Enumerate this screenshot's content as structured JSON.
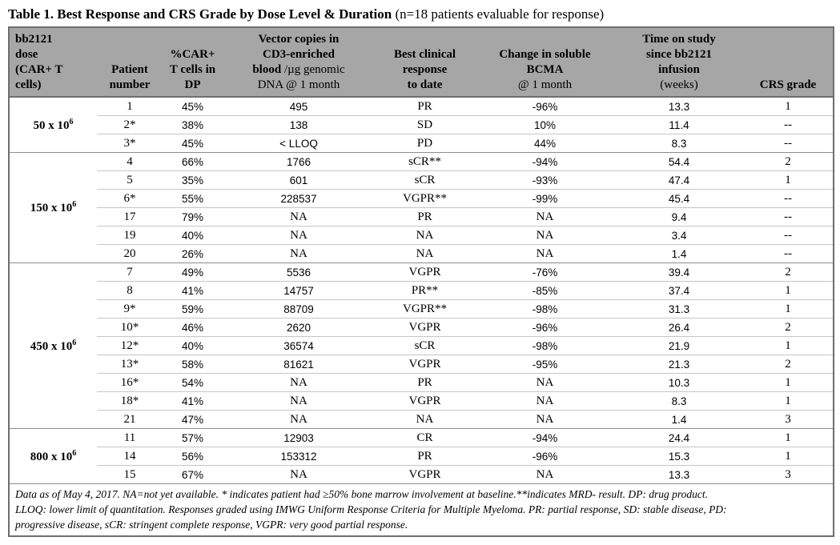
{
  "title": {
    "bold": "Table 1. Best Response and CRS Grade by Dose Level & Duration",
    "normal": " (n=18 patients evaluable for response)"
  },
  "colors": {
    "header_bg": "#a6a6a6",
    "outer_border": "#6e6e6e",
    "group_line": "#8c8c8c",
    "row_line": "#c6c6c6",
    "text": "#000000"
  },
  "table": {
    "columns": [
      {
        "id": "dose",
        "lines": [
          [
            {
              "t": "bb2121",
              "b": true
            }
          ],
          [
            {
              "t": "dose",
              "b": true
            }
          ],
          [
            {
              "t": "(CAR+ T",
              "b": true
            }
          ],
          [
            {
              "t": "cells)",
              "b": true
            }
          ]
        ]
      },
      {
        "id": "patient",
        "lines": [
          [
            {
              "t": "Patient",
              "b": true
            }
          ],
          [
            {
              "t": "number",
              "b": true
            }
          ]
        ]
      },
      {
        "id": "car_pct",
        "lines": [
          [
            {
              "t": "%CAR+",
              "b": true
            }
          ],
          [
            {
              "t": "T cells in",
              "b": true
            }
          ],
          [
            {
              "t": "DP",
              "b": true
            }
          ]
        ]
      },
      {
        "id": "vector",
        "lines": [
          [
            {
              "t": "Vector copies in",
              "b": true
            }
          ],
          [
            {
              "t": "CD3-enriched",
              "b": true
            }
          ],
          [
            {
              "t": "blood ",
              "b": true
            },
            {
              "t": "/µg genomic",
              "b": false
            }
          ],
          [
            {
              "t": "DNA @ 1 month",
              "b": false
            }
          ]
        ]
      },
      {
        "id": "response",
        "lines": [
          [
            {
              "t": "Best clinical",
              "b": true
            }
          ],
          [
            {
              "t": "response",
              "b": true
            }
          ],
          [
            {
              "t": "to date",
              "b": true
            }
          ]
        ]
      },
      {
        "id": "bcma",
        "lines": [
          [
            {
              "t": "Change in soluble",
              "b": true
            }
          ],
          [
            {
              "t": "BCMA",
              "b": true
            }
          ],
          [
            {
              "t": "@ 1 month",
              "b": false
            }
          ]
        ]
      },
      {
        "id": "time",
        "lines": [
          [
            {
              "t": "Time on study",
              "b": true
            }
          ],
          [
            {
              "t": "since bb2121",
              "b": true
            }
          ],
          [
            {
              "t": "infusion",
              "b": true
            }
          ],
          [
            {
              "t": "(weeks)",
              "b": false
            }
          ]
        ]
      },
      {
        "id": "crs",
        "lines": [
          [
            {
              "t": "CRS grade",
              "b": true
            }
          ]
        ]
      }
    ],
    "sans_columns": [
      "car_pct",
      "vector",
      "bcma",
      "time"
    ],
    "groups": [
      {
        "dose": {
          "text": "50 x 10",
          "sup": "6"
        },
        "rows": [
          {
            "patient": "1",
            "car_pct": "45%",
            "vector": "495",
            "response": "PR",
            "bcma": "-96%",
            "time": "13.3",
            "crs": "1"
          },
          {
            "patient": "2*",
            "car_pct": "38%",
            "vector": "138",
            "response": "SD",
            "bcma": "10%",
            "time": "11.4",
            "crs": "--"
          },
          {
            "patient": "3*",
            "car_pct": "45%",
            "vector": "< LLOQ",
            "response": "PD",
            "bcma": "44%",
            "time": "8.3",
            "crs": "--"
          }
        ]
      },
      {
        "dose": {
          "text": "150 x 10",
          "sup": "6"
        },
        "rows": [
          {
            "patient": "4",
            "car_pct": "66%",
            "vector": "1766",
            "response": "sCR**",
            "bcma": "-94%",
            "time": "54.4",
            "crs": "2"
          },
          {
            "patient": "5",
            "car_pct": "35%",
            "vector": "601",
            "response": "sCR",
            "bcma": "-93%",
            "time": "47.4",
            "crs": "1"
          },
          {
            "patient": "6*",
            "car_pct": "55%",
            "vector": "228537",
            "response": "VGPR**",
            "bcma": "-99%",
            "time": "45.4",
            "crs": "--"
          },
          {
            "patient": "17",
            "car_pct": "79%",
            "vector": "NA",
            "response": "PR",
            "bcma": "NA",
            "time": "9.4",
            "crs": "--"
          },
          {
            "patient": "19",
            "car_pct": "40%",
            "vector": "NA",
            "response": "NA",
            "bcma": "NA",
            "time": "3.4",
            "crs": "--"
          },
          {
            "patient": "20",
            "car_pct": "26%",
            "vector": "NA",
            "response": "NA",
            "bcma": "NA",
            "time": "1.4",
            "crs": "--"
          }
        ]
      },
      {
        "dose": {
          "text": "450 x 10",
          "sup": "6"
        },
        "rows": [
          {
            "patient": "7",
            "car_pct": "49%",
            "vector": "5536",
            "response": "VGPR",
            "bcma": "-76%",
            "time": "39.4",
            "crs": "2"
          },
          {
            "patient": "8",
            "car_pct": "41%",
            "vector": "14757",
            "response": "PR**",
            "bcma": "-85%",
            "time": "37.4",
            "crs": "1"
          },
          {
            "patient": "9*",
            "car_pct": "59%",
            "vector": "88709",
            "response": "VGPR**",
            "bcma": "-98%",
            "time": "31.3",
            "crs": "1"
          },
          {
            "patient": "10*",
            "car_pct": "46%",
            "vector": "2620",
            "response": "VGPR",
            "bcma": "-96%",
            "time": "26.4",
            "crs": "2"
          },
          {
            "patient": "12*",
            "car_pct": "40%",
            "vector": "36574",
            "response": "sCR",
            "bcma": "-98%",
            "time": "21.9",
            "crs": "1"
          },
          {
            "patient": "13*",
            "car_pct": "58%",
            "vector": "81621",
            "response": "VGPR",
            "bcma": "-95%",
            "time": "21.3",
            "crs": "2"
          },
          {
            "patient": "16*",
            "car_pct": "54%",
            "vector": "NA",
            "response": "PR",
            "bcma": "NA",
            "time": "10.3",
            "crs": "1"
          },
          {
            "patient": "18*",
            "car_pct": "41%",
            "vector": "NA",
            "response": "VGPR",
            "bcma": "NA",
            "time": "8.3",
            "crs": "1"
          },
          {
            "patient": "21",
            "car_pct": "47%",
            "vector": "NA",
            "response": "NA",
            "bcma": "NA",
            "time": "1.4",
            "crs": "3"
          }
        ]
      },
      {
        "dose": {
          "text": "800 x 10",
          "sup": "6"
        },
        "rows": [
          {
            "patient": "11",
            "car_pct": "57%",
            "vector": "12903",
            "response": "CR",
            "bcma": "-94%",
            "time": "24.4",
            "crs": "1"
          },
          {
            "patient": "14",
            "car_pct": "56%",
            "vector": "153312",
            "response": "PR",
            "bcma": "-96%",
            "time": "15.3",
            "crs": "1"
          },
          {
            "patient": "15",
            "car_pct": "67%",
            "vector": "NA",
            "response": "VGPR",
            "bcma": "NA",
            "time": "13.3",
            "crs": "3"
          }
        ]
      }
    ]
  },
  "footnote": {
    "lines": [
      "Data as of May 4, 2017. NA=not yet available. * indicates patient had ≥50% bone marrow involvement at baseline.**indicates MRD- result. DP: drug product.",
      "LLOQ: lower limit of quantitation. Responses graded using IMWG Uniform Response Criteria for Multiple Myeloma. PR: partial response, SD: stable disease, PD:",
      "progressive disease, sCR: stringent complete response, VGPR: very good partial response."
    ]
  }
}
